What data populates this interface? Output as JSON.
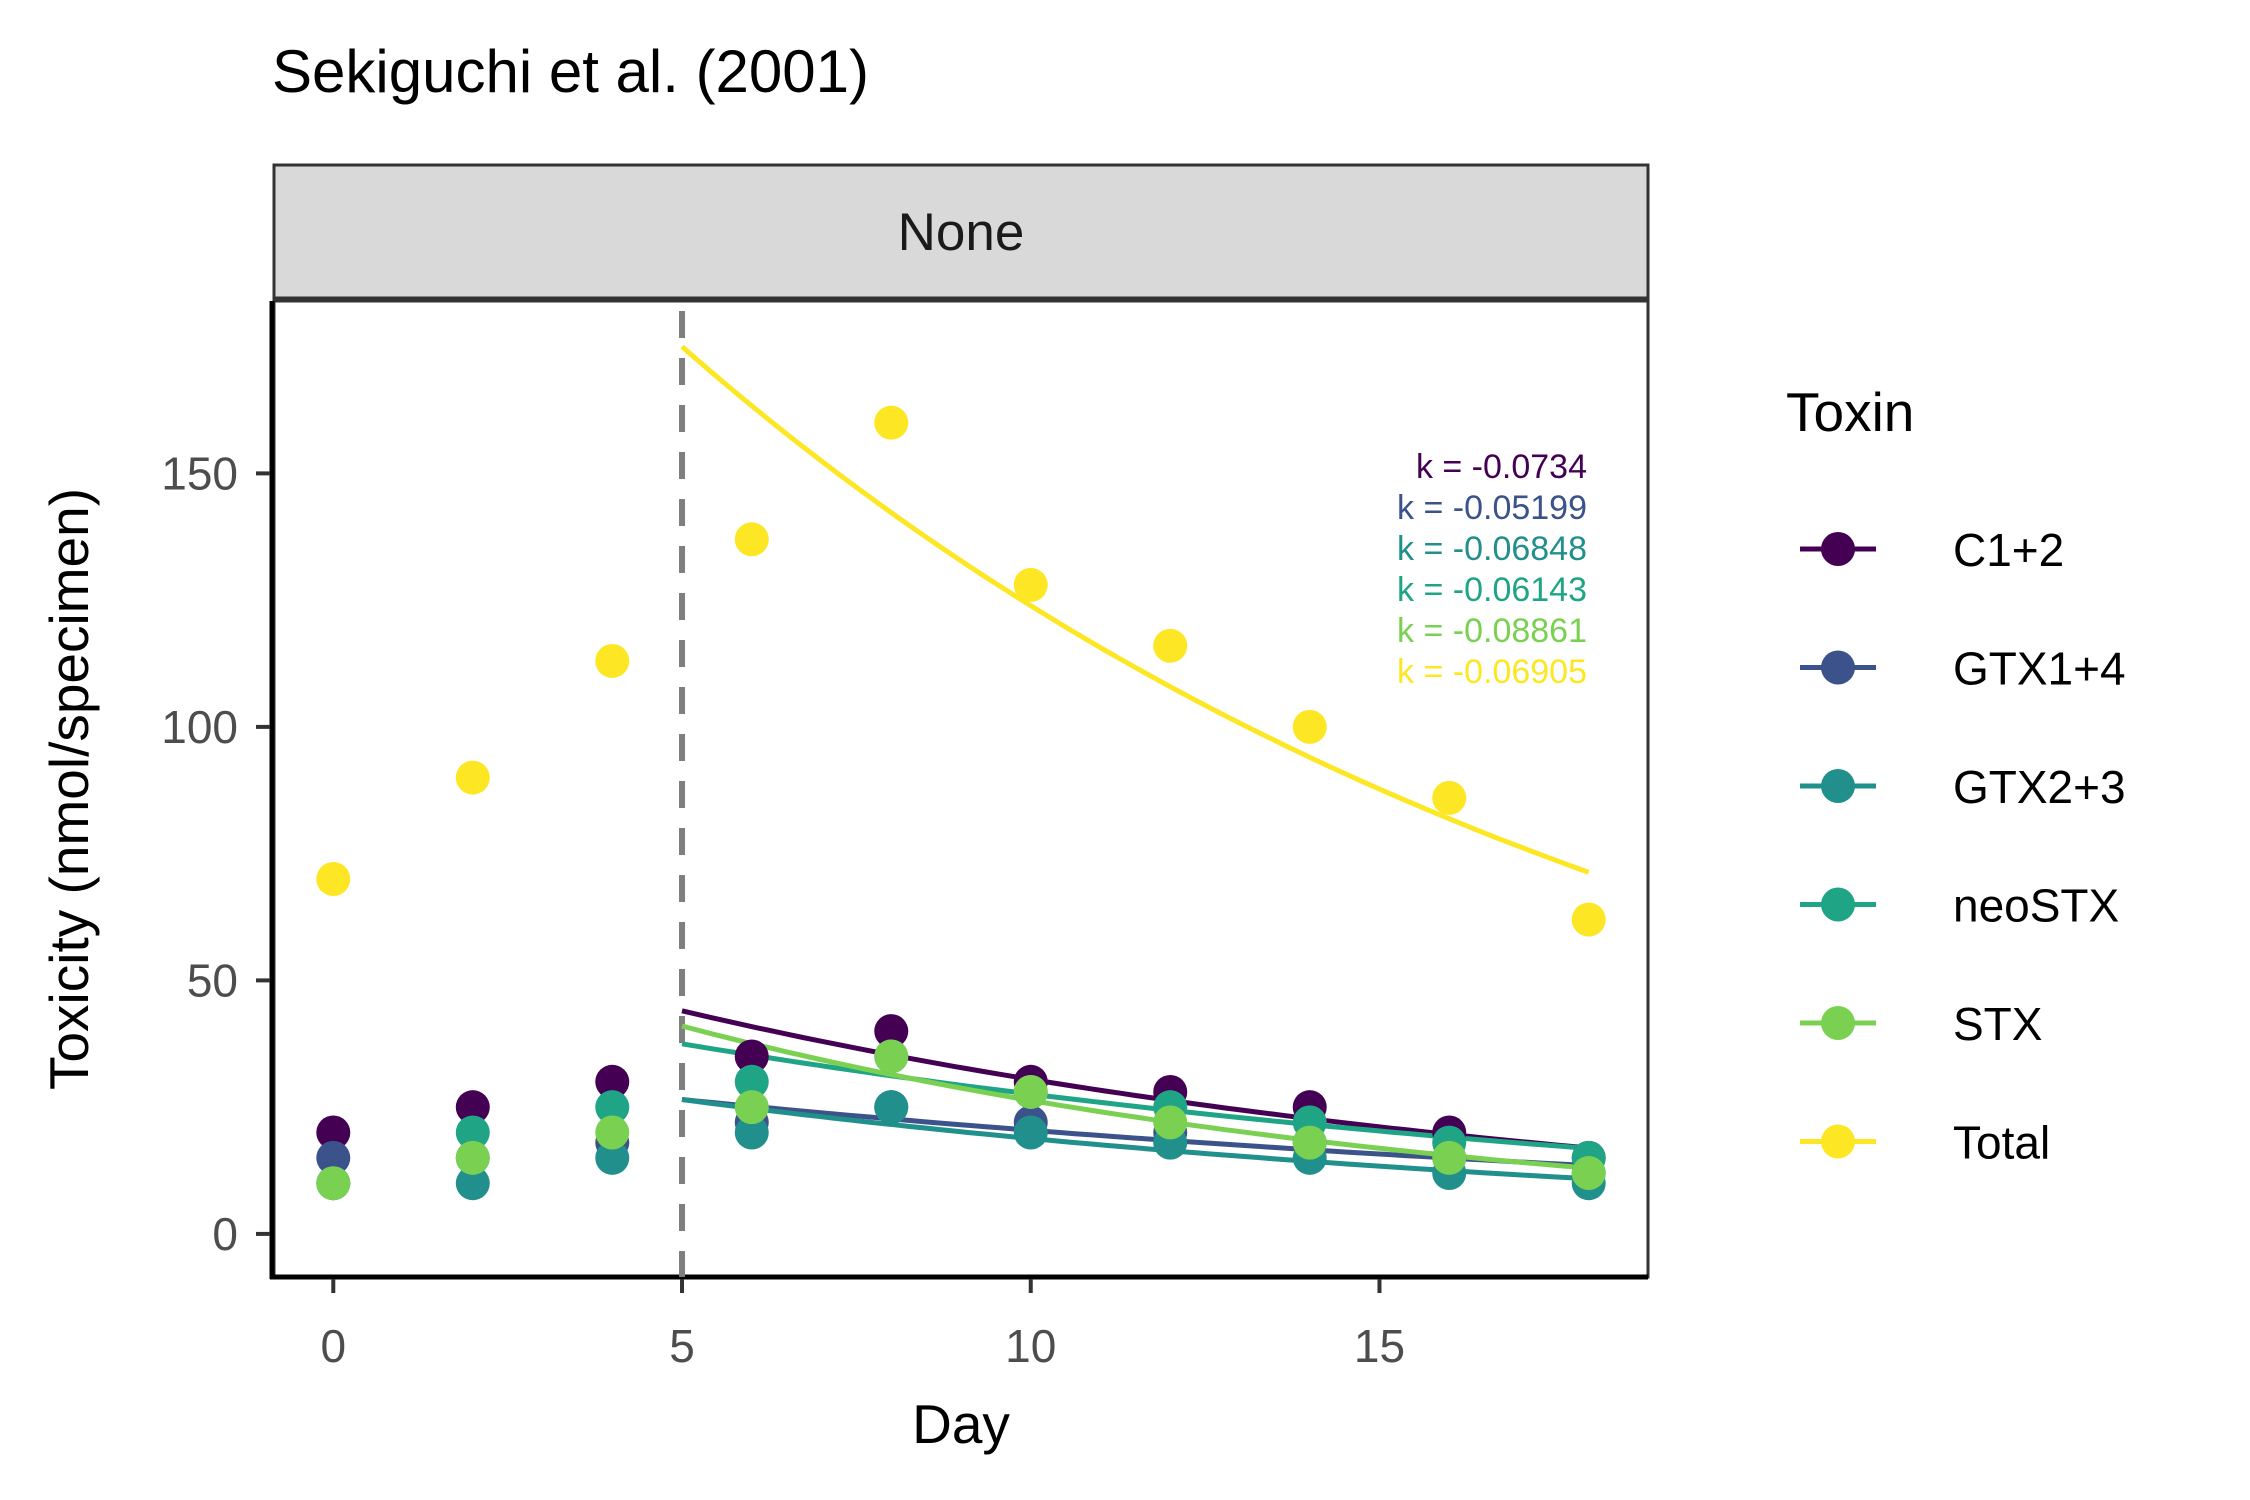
{
  "chart_data": {
    "type": "scatter",
    "title": "Sekiguchi et al. (2001)",
    "facet_label": "None",
    "xlabel": "Day",
    "ylabel": "Toxicity (nmol/specimen)",
    "xlim": [
      -0.85,
      18.85
    ],
    "ylim": [
      -8.5,
      184
    ],
    "x_ticks": [
      0,
      5,
      10,
      15
    ],
    "y_ticks": [
      0,
      50,
      100,
      150
    ],
    "vline_x": 5,
    "grid": false,
    "legend_title": "Toxin",
    "legend_position": "right",
    "series": [
      {
        "name": "C1+2",
        "color": "#440154",
        "x": [
          0,
          2,
          4,
          6,
          8,
          10,
          12,
          14,
          16,
          18
        ],
        "y": [
          20,
          25,
          30,
          35,
          40,
          30,
          28,
          25,
          20,
          15
        ],
        "fit": {
          "k": -0.0734,
          "label": "k = -0.0734",
          "a": 44.0,
          "x0": 5,
          "x1": 18
        }
      },
      {
        "name": "GTX1+4",
        "color": "#3b528b",
        "x": [
          0,
          2,
          4,
          6,
          8,
          10,
          12,
          14,
          16,
          18
        ],
        "y": [
          15,
          15,
          18,
          22,
          25,
          22,
          20,
          18,
          15,
          12
        ],
        "fit": {
          "k": -0.05199,
          "label": "k = -0.05199",
          "a": 26.5,
          "x0": 5,
          "x1": 18
        }
      },
      {
        "name": "GTX2+3",
        "color": "#21908c",
        "x": [
          0,
          2,
          4,
          6,
          8,
          10,
          12,
          14,
          16,
          18
        ],
        "y": [
          10,
          10,
          15,
          20,
          25,
          20,
          18,
          15,
          12,
          10
        ],
        "fit": {
          "k": -0.06848,
          "label": "k = -0.06848",
          "a": 26.5,
          "x0": 5,
          "x1": 18
        }
      },
      {
        "name": "neoSTX",
        "color": "#20a486",
        "x": [
          0,
          2,
          4,
          6,
          8,
          10,
          12,
          14,
          16,
          18
        ],
        "y": [
          10,
          20,
          25,
          30,
          35,
          28,
          25,
          22,
          18,
          15
        ],
        "fit": {
          "k": -0.06143,
          "label": "k = -0.06143",
          "a": 37.5,
          "x0": 5,
          "x1": 18
        }
      },
      {
        "name": "STX",
        "color": "#7ad151",
        "x": [
          0,
          2,
          4,
          6,
          8,
          10,
          12,
          14,
          16,
          18
        ],
        "y": [
          10,
          15,
          20,
          25,
          35,
          28,
          22,
          18,
          15,
          12
        ],
        "fit": {
          "k": -0.08861,
          "label": "k = -0.08861",
          "a": 41.0,
          "x0": 5,
          "x1": 18
        }
      },
      {
        "name": "Total",
        "color": "#fde725",
        "x": [
          0,
          2,
          4,
          6,
          8,
          10,
          12,
          14,
          16,
          18
        ],
        "y": [
          70,
          90,
          113,
          137,
          160,
          128,
          116,
          100,
          86,
          62
        ],
        "fit": {
          "k": -0.06905,
          "label": "k = -0.06905",
          "a": 175.0,
          "x0": 5,
          "x1": 18
        }
      }
    ]
  }
}
